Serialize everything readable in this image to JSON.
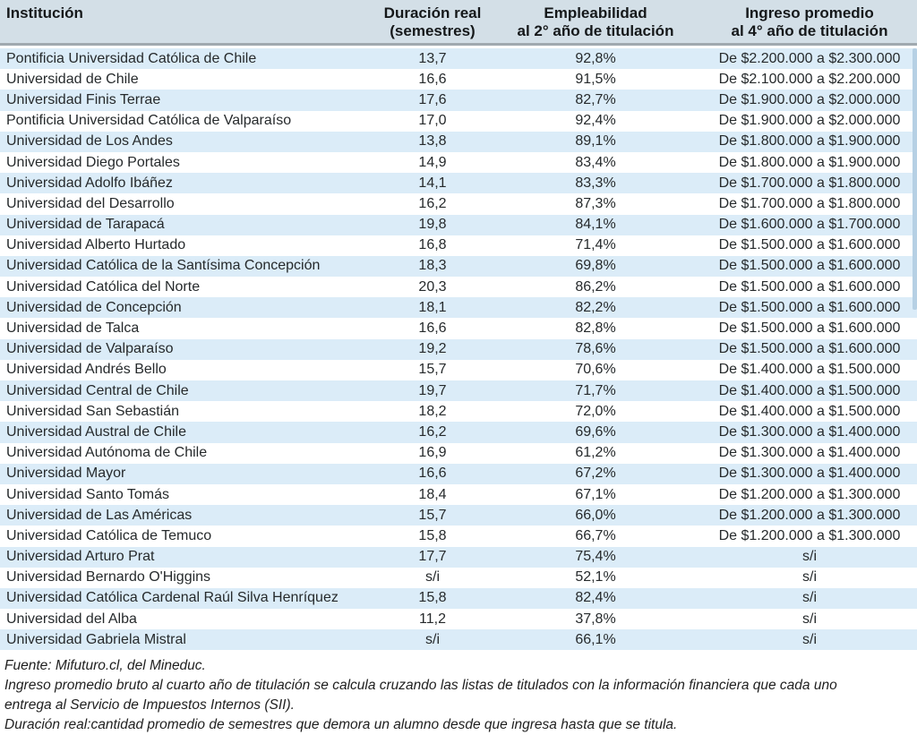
{
  "colors": {
    "header_bg": "#d3dfe7",
    "header_border": "#a0a9af",
    "header_text": "#15181a",
    "row_alt": "#dbecf8",
    "body_text": "#262a2c",
    "strip": "#b6d0e4",
    "note_text": "#1f1f1f"
  },
  "chart_data": {
    "type": "table",
    "columns": [
      {
        "id": "institution",
        "align": "left",
        "header_lines": [
          "Institución"
        ]
      },
      {
        "id": "duration-semesters",
        "align": "center",
        "header_lines": [
          "Duración real",
          "(semestres)"
        ]
      },
      {
        "id": "employability-2nd-year",
        "align": "center",
        "header_lines": [
          "Empleabilidad",
          "al 2° año de titulación"
        ]
      },
      {
        "id": "income-4th-year",
        "align": "center",
        "header_lines": [
          "Ingreso promedio",
          "al 4° año de titulación"
        ]
      }
    ],
    "rows": [
      [
        "Pontificia Universidad Católica de Chile",
        "13,7",
        "92,8%",
        "De $2.200.000 a $2.300.000"
      ],
      [
        "Universidad de Chile",
        "16,6",
        "91,5%",
        "De $2.100.000 a $2.200.000"
      ],
      [
        "Universidad Finis Terrae",
        "17,6",
        "82,7%",
        "De $1.900.000 a $2.000.000"
      ],
      [
        "Pontificia Universidad Católica de Valparaíso",
        "17,0",
        "92,4%",
        "De $1.900.000 a $2.000.000"
      ],
      [
        "Universidad de Los Andes",
        "13,8",
        "89,1%",
        "De $1.800.000 a $1.900.000"
      ],
      [
        "Universidad Diego Portales",
        "14,9",
        "83,4%",
        "De $1.800.000 a $1.900.000"
      ],
      [
        "Universidad Adolfo Ibáñez",
        "14,1",
        "83,3%",
        "De $1.700.000 a $1.800.000"
      ],
      [
        "Universidad del Desarrollo",
        "16,2",
        "87,3%",
        "De $1.700.000 a $1.800.000"
      ],
      [
        "Universidad de Tarapacá",
        "19,8",
        "84,1%",
        "De $1.600.000 a $1.700.000"
      ],
      [
        "Universidad Alberto Hurtado",
        "16,8",
        "71,4%",
        "De $1.500.000 a $1.600.000"
      ],
      [
        "Universidad Católica de la Santísima Concepción",
        "18,3",
        "69,8%",
        "De $1.500.000 a $1.600.000"
      ],
      [
        "Universidad Católica del Norte",
        "20,3",
        "86,2%",
        "De $1.500.000 a $1.600.000"
      ],
      [
        "Universidad de Concepción",
        "18,1",
        "82,2%",
        "De $1.500.000 a $1.600.000"
      ],
      [
        "Universidad de Talca",
        "16,6",
        "82,8%",
        "De $1.500.000 a $1.600.000"
      ],
      [
        "Universidad de Valparaíso",
        "19,2",
        "78,6%",
        "De $1.500.000 a $1.600.000"
      ],
      [
        "Universidad Andrés Bello",
        "15,7",
        "70,6%",
        "De $1.400.000 a $1.500.000"
      ],
      [
        "Universidad Central de Chile",
        "19,7",
        "71,7%",
        "De $1.400.000 a $1.500.000"
      ],
      [
        "Universidad San Sebastián",
        "18,2",
        "72,0%",
        "De $1.400.000 a $1.500.000"
      ],
      [
        "Universidad Austral de Chile",
        "16,2",
        "69,6%",
        "De $1.300.000 a $1.400.000"
      ],
      [
        "Universidad Autónoma de Chile",
        "16,9",
        "61,2%",
        "De $1.300.000 a $1.400.000"
      ],
      [
        "Universidad Mayor",
        "16,6",
        "67,2%",
        "De $1.300.000 a $1.400.000"
      ],
      [
        "Universidad Santo Tomás",
        "18,4",
        "67,1%",
        "De $1.200.000 a $1.300.000"
      ],
      [
        "Universidad de Las Américas",
        "15,7",
        "66,0%",
        "De $1.200.000 a $1.300.000"
      ],
      [
        "Universidad Católica de Temuco",
        "15,8",
        "66,7%",
        "De $1.200.000 a $1.300.000"
      ],
      [
        "Universidad Arturo Prat",
        "17,7",
        "75,4%",
        "s/i"
      ],
      [
        "Universidad Bernardo O'Higgins",
        "s/i",
        "52,1%",
        "s/i"
      ],
      [
        "Universidad Católica Cardenal Raúl Silva Henríquez",
        "15,8",
        "82,4%",
        "s/i"
      ],
      [
        "Universidad del Alba",
        "11,2",
        "37,8%",
        "s/i"
      ],
      [
        "Universidad Gabriela Mistral",
        "s/i",
        "66,1%",
        "s/i"
      ]
    ]
  },
  "footer": {
    "lines": [
      "Fuente: Mifuturo.cl, del Mineduc.",
      "Ingreso promedio bruto al cuarto año de titulación se calcula cruzando las listas de titulados con la información financiera que cada uno",
      "entrega al Servicio de Impuestos Internos (SII).",
      "Duración real:cantidad promedio de semestres que demora un alumno desde que ingresa hasta que se titula."
    ]
  }
}
